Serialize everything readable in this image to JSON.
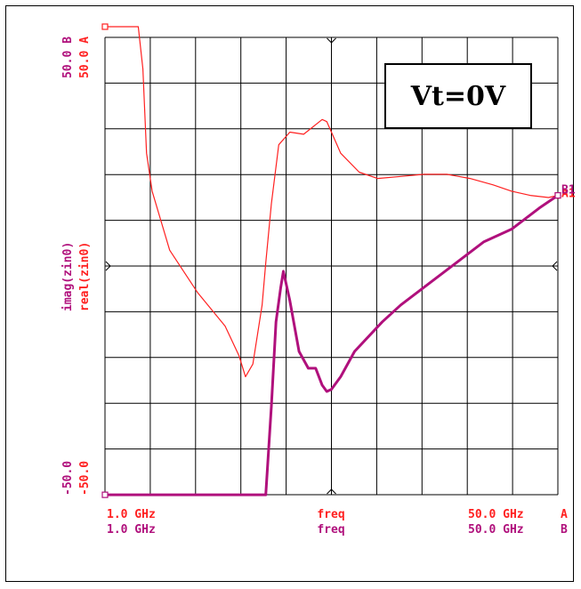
{
  "annotation": "Vt=0V",
  "colors": {
    "series_a": "#ff2020",
    "series_b": "#b0107c",
    "grid": "#000000"
  },
  "chart_data": {
    "type": "line",
    "xlabel": "freq",
    "x_range_labels": {
      "A": {
        "start": "1.0 GHz",
        "end": "50.0 GHz",
        "tag": "A"
      },
      "B": {
        "start": "1.0 GHz",
        "end": "50.0 GHz",
        "tag": "B"
      }
    },
    "xlim": [
      1.0,
      50.0
    ],
    "x_unit": "GHz",
    "y_axis_labels": {
      "A": "real(zin0)",
      "B": "imag(zin0)"
    },
    "ylim_labels": {
      "A_top": "50.0 A",
      "B_top": "50.0 B",
      "A_bottom": "-50.0",
      "B_bottom": "-50.0"
    },
    "ylim": [
      -61,
      50
    ],
    "grid": true,
    "series": [
      {
        "name": "A1",
        "axis_label": "real(zin0)",
        "x": [
          1.0,
          4.6,
          5.1,
          5.5,
          6.1,
          8.0,
          11.0,
          14.0,
          15.5,
          16.2,
          17.0,
          18.0,
          18.4,
          19.0,
          19.8,
          21.0,
          22.5,
          24.5,
          25.0,
          25.5,
          26.5,
          28.5,
          30.5,
          33.0,
          35.5,
          38.0,
          40.5,
          43.0,
          45.0,
          47.0,
          49.0,
          50.0
        ],
        "y": [
          50.0,
          50.0,
          40.0,
          20.0,
          11.0,
          -3.0,
          -13.0,
          -21.0,
          -28.0,
          -33.0,
          -30.0,
          -16.0,
          -6.0,
          8.0,
          22.0,
          25.0,
          24.5,
          28.0,
          27.5,
          25.0,
          20.0,
          15.5,
          14.0,
          14.5,
          15.0,
          15.0,
          14.0,
          12.5,
          11.0,
          10.0,
          9.5,
          10.0
        ]
      },
      {
        "name": "B1",
        "axis_label": "imag(zin0)",
        "x": [
          1.0,
          18.4,
          19.0,
          19.5,
          20.0,
          20.3,
          21.0,
          22.0,
          23.0,
          23.8,
          24.5,
          25.0,
          25.5,
          26.5,
          28.0,
          31.0,
          33.0,
          36.0,
          39.0,
          42.0,
          45.0,
          48.0,
          50.0
        ],
        "y": [
          -61.0,
          -61.0,
          -40.0,
          -20.0,
          -12.0,
          -8.0,
          -15.0,
          -27.0,
          -31.0,
          -31.0,
          -35.0,
          -36.5,
          -36.0,
          -33.0,
          -27.0,
          -20.0,
          -16.0,
          -11.0,
          -6.0,
          -1.0,
          2.0,
          7.0,
          10.0
        ]
      }
    ]
  }
}
